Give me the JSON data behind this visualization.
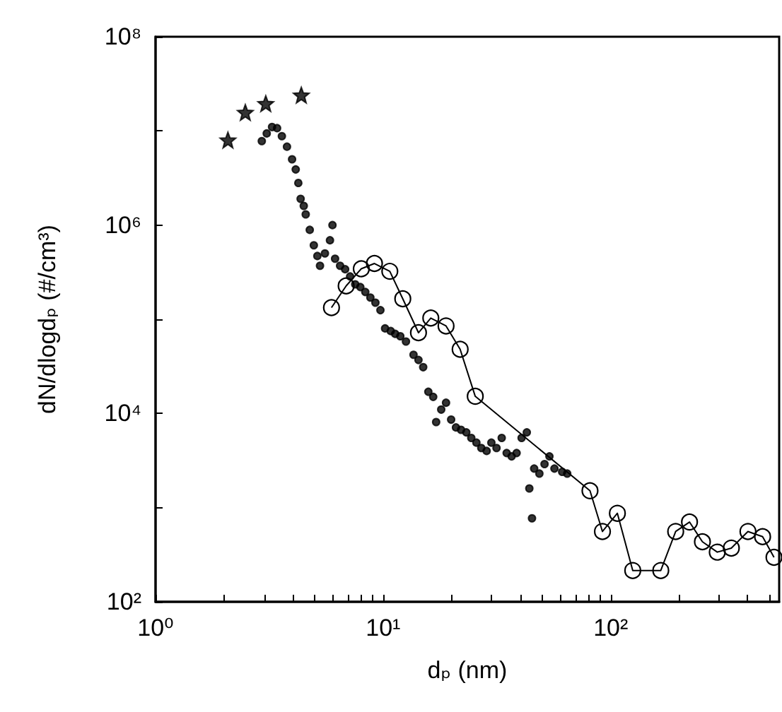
{
  "chart_data": {
    "type": "scatter",
    "xlabel": "dₚ (nm)",
    "ylabel": "dN/dlogdₚ (#/cm³)",
    "log": "xy",
    "grid": false,
    "xlim": [
      1,
      550
    ],
    "ylim": [
      100,
      100000000
    ],
    "xticks": [
      {
        "value": 1,
        "label": "10⁰"
      },
      {
        "value": 2,
        "label": null
      },
      {
        "value": 3,
        "label": null
      },
      {
        "value": 4,
        "label": null
      },
      {
        "value": 5,
        "label": null
      },
      {
        "value": 6,
        "label": null
      },
      {
        "value": 7,
        "label": null
      },
      {
        "value": 8,
        "label": null
      },
      {
        "value": 9,
        "label": null
      },
      {
        "value": 10,
        "label": "10¹"
      },
      {
        "value": 20,
        "label": null
      },
      {
        "value": 30,
        "label": null
      },
      {
        "value": 40,
        "label": null
      },
      {
        "value": 50,
        "label": null
      },
      {
        "value": 60,
        "label": null
      },
      {
        "value": 70,
        "label": null
      },
      {
        "value": 80,
        "label": null
      },
      {
        "value": 90,
        "label": null
      },
      {
        "value": 100,
        "label": "10²"
      },
      {
        "value": 200,
        "label": null
      },
      {
        "value": 300,
        "label": null
      },
      {
        "value": 400,
        "label": null
      },
      {
        "value": 500,
        "label": null
      }
    ],
    "yticks": [
      {
        "value": 100,
        "label": "10²"
      },
      {
        "value": 1000,
        "label": null
      },
      {
        "value": 10000,
        "label": "10⁴"
      },
      {
        "value": 100000,
        "label": null
      },
      {
        "value": 1000000,
        "label": "10⁶"
      },
      {
        "value": 10000000,
        "label": null
      },
      {
        "value": 100000000,
        "label": "10⁸"
      }
    ],
    "series": [
      {
        "marker": "star",
        "color": "#000000",
        "x": [
          2.08,
          2.48,
          3.05,
          4.37
        ],
        "values": [
          8000000,
          15700000,
          19500000,
          24000000
        ]
      },
      {
        "marker": "circle",
        "color": "#000000",
        "x": [
          2.93,
          3.08,
          3.25,
          3.42,
          3.59,
          3.78,
          3.98,
          4.13,
          4.24,
          4.34,
          4.48,
          4.57,
          4.76,
          4.96,
          5.14,
          5.28,
          5.55,
          5.84,
          5.99,
          6.15,
          6.47,
          6.81,
          7.16,
          7.54,
          7.94,
          8.35,
          8.79,
          9.25,
          9.73,
          10.2,
          10.8,
          11.3,
          11.9,
          12.6,
          13.6,
          14.3,
          15.0,
          15.8,
          16.6,
          17.1,
          18.0,
          18.9,
          19.9,
          20.9,
          22.0,
          23.2,
          24.4,
          25.7,
          27.0,
          28.5,
          29.9,
          31.5,
          33.2,
          34.9,
          36.7,
          38.6,
          40.6,
          42.8,
          43.9,
          45.1,
          46.1,
          48.6,
          51.2,
          53.8,
          56.6,
          61.2,
          64.4
        ],
        "values": [
          7800000,
          9400000,
          11000000,
          10700000,
          8800000,
          6800000,
          5000000,
          3900000,
          2800000,
          1900000,
          1600000,
          1300000,
          890000,
          610000,
          470000,
          370000,
          500000,
          690000,
          1000000,
          440000,
          370000,
          340000,
          285000,
          235000,
          220000,
          195000,
          170000,
          150000,
          125000,
          80000,
          75000,
          70000,
          66000,
          58000,
          42000,
          37000,
          31000,
          17000,
          15000,
          8100,
          11000,
          13000,
          8600,
          7100,
          6700,
          6300,
          5500,
          4900,
          4300,
          4000,
          4900,
          4300,
          5500,
          3800,
          3500,
          3800,
          5500,
          6300,
          1600,
          770,
          2600,
          2300,
          2900,
          3500,
          2600,
          2400,
          2300
        ]
      },
      {
        "type": "line",
        "marker": "circle",
        "color": "#000000",
        "x": [
          5.93,
          6.88,
          8.02,
          9.16,
          10.7,
          12.2,
          14.3,
          16.2,
          18.9,
          21.8,
          25.4,
          81.1,
          92.0,
          107,
          125,
          166,
          193,
          222,
          253,
          294,
          339,
          401,
          465,
          522
        ],
        "values": [
          133000,
          226000,
          344000,
          391000,
          323000,
          165000,
          72000,
          103000,
          85000,
          48000,
          15200,
          1510,
          558,
          871,
          215,
          215,
          558,
          703,
          434,
          337,
          372,
          558,
          492,
          297
        ]
      }
    ]
  }
}
